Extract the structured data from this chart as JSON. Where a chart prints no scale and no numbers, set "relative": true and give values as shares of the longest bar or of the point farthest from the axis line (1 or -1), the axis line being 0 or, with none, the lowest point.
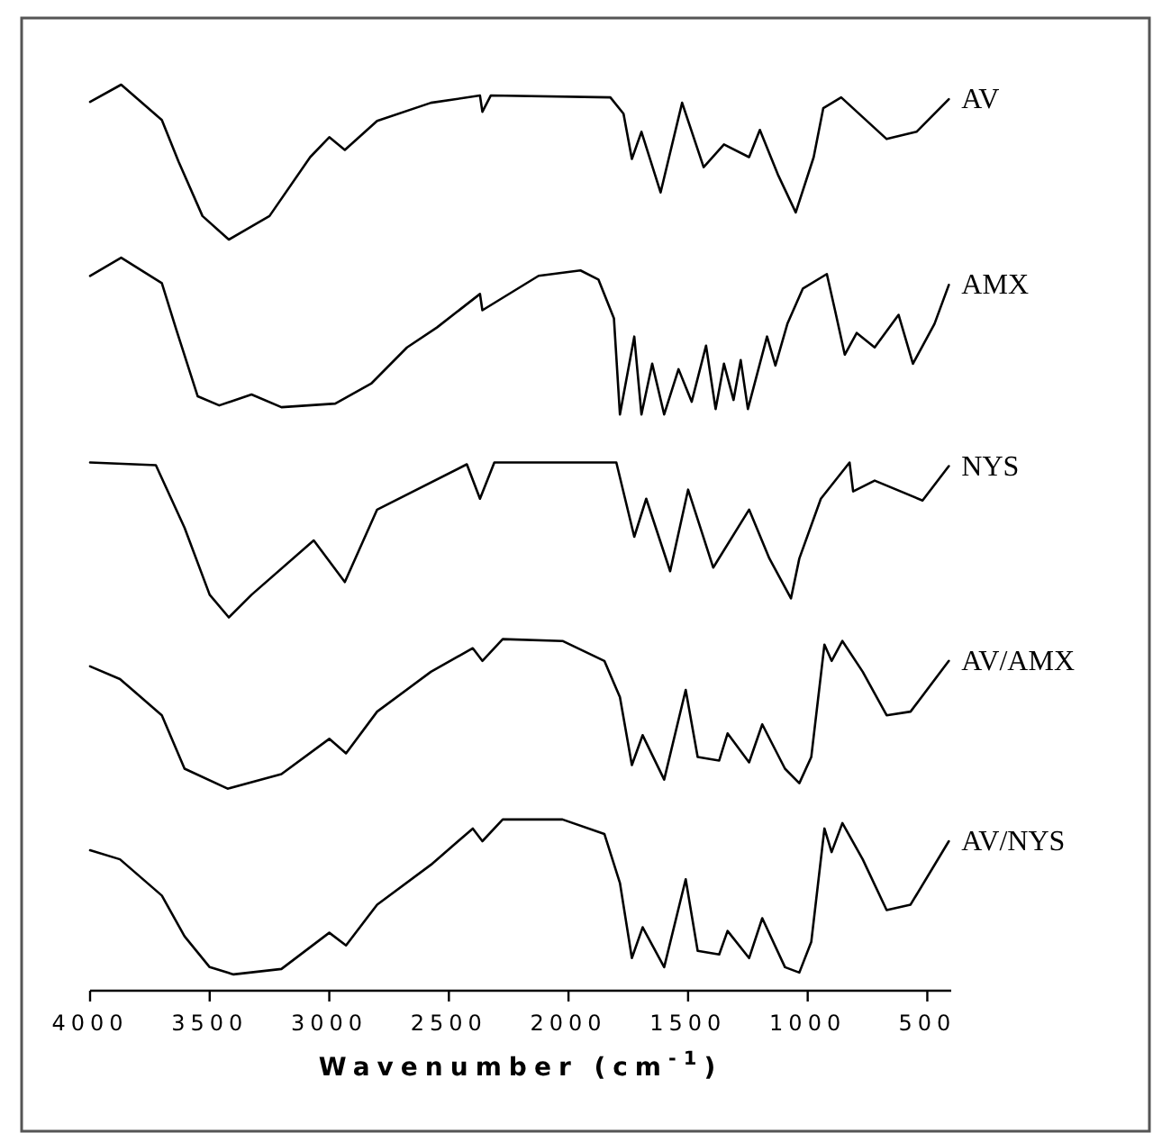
{
  "chart_data": {
    "type": "line",
    "relative": true,
    "xlabel": "Wavenumber (cm$^{-1}$)",
    "xlim": [
      4000,
      400
    ],
    "xticks": [
      4000,
      3500,
      3000,
      2500,
      2000,
      1500,
      1000,
      500
    ],
    "grid": false,
    "legend": false,
    "marker": "none",
    "line_style": "solid",
    "series": [
      {
        "name": "AV",
        "color": "#000000",
        "x": [
          4000,
          3870,
          3700,
          3630,
          3530,
          3420,
          3250,
          3080,
          3000,
          2935,
          2800,
          2575,
          2370,
          2360,
          2325,
          1825,
          1770,
          1735,
          1695,
          1615,
          1525,
          1435,
          1350,
          1245,
          1200,
          1125,
          1050,
          975,
          935,
          860,
          670,
          545,
          410
        ],
        "values": [
          0.981,
          1.0,
          0.961,
          0.915,
          0.855,
          0.829,
          0.855,
          0.92,
          0.942,
          0.928,
          0.96,
          0.98,
          0.988,
          0.97,
          0.988,
          0.986,
          0.968,
          0.918,
          0.948,
          0.881,
          0.98,
          0.909,
          0.934,
          0.92,
          0.95,
          0.901,
          0.859,
          0.92,
          0.974,
          0.986,
          0.94,
          0.948,
          0.984
        ]
      },
      {
        "name": "AMX",
        "color": "#000000",
        "x": [
          4000,
          3870,
          3700,
          3640,
          3550,
          3460,
          3325,
          3200,
          2975,
          2825,
          2675,
          2550,
          2370,
          2360,
          2125,
          1950,
          1875,
          1810,
          1785,
          1725,
          1695,
          1650,
          1600,
          1540,
          1485,
          1425,
          1385,
          1350,
          1310,
          1280,
          1250,
          1170,
          1135,
          1085,
          1020,
          920,
          885,
          845,
          795,
          720,
          620,
          560,
          470,
          410
        ],
        "values": [
          0.789,
          0.809,
          0.781,
          0.73,
          0.656,
          0.646,
          0.658,
          0.644,
          0.648,
          0.67,
          0.71,
          0.732,
          0.769,
          0.751,
          0.789,
          0.795,
          0.785,
          0.742,
          0.636,
          0.722,
          0.636,
          0.692,
          0.636,
          0.686,
          0.65,
          0.712,
          0.642,
          0.692,
          0.652,
          0.696,
          0.642,
          0.722,
          0.69,
          0.736,
          0.775,
          0.791,
          0.75,
          0.702,
          0.726,
          0.71,
          0.746,
          0.692,
          0.736,
          0.779
        ]
      },
      {
        "name": "NYS",
        "color": "#000000",
        "x": [
          4000,
          3725,
          3605,
          3500,
          3420,
          3325,
          3065,
          2935,
          2800,
          2425,
          2370,
          2310,
          1800,
          1725,
          1675,
          1575,
          1500,
          1395,
          1245,
          1160,
          1070,
          1035,
          945,
          825,
          810,
          720,
          520,
          410
        ],
        "values": [
          0.583,
          0.58,
          0.511,
          0.437,
          0.412,
          0.437,
          0.497,
          0.451,
          0.531,
          0.581,
          0.543,
          0.583,
          0.583,
          0.501,
          0.543,
          0.463,
          0.553,
          0.467,
          0.531,
          0.477,
          0.433,
          0.477,
          0.543,
          0.583,
          0.551,
          0.563,
          0.541,
          0.579
        ]
      },
      {
        "name": "AV/AMX",
        "color": "#000000",
        "x": [
          4000,
          3875,
          3700,
          3605,
          3425,
          3200,
          3000,
          2930,
          2800,
          2575,
          2400,
          2360,
          2275,
          2025,
          1850,
          1785,
          1735,
          1690,
          1600,
          1510,
          1460,
          1370,
          1335,
          1245,
          1190,
          1095,
          1035,
          985,
          930,
          900,
          855,
          770,
          670,
          570,
          410
        ],
        "values": [
          0.358,
          0.344,
          0.304,
          0.245,
          0.223,
          0.239,
          0.278,
          0.262,
          0.308,
          0.352,
          0.378,
          0.364,
          0.388,
          0.386,
          0.364,
          0.324,
          0.249,
          0.282,
          0.233,
          0.332,
          0.258,
          0.254,
          0.284,
          0.252,
          0.294,
          0.245,
          0.229,
          0.258,
          0.382,
          0.364,
          0.386,
          0.352,
          0.304,
          0.308,
          0.364
        ]
      },
      {
        "name": "AV/NYS",
        "color": "#000000",
        "x": [
          4000,
          3875,
          3700,
          3605,
          3500,
          3400,
          3200,
          3000,
          2930,
          2800,
          2575,
          2400,
          2360,
          2275,
          2025,
          1850,
          1785,
          1735,
          1690,
          1600,
          1510,
          1460,
          1370,
          1335,
          1245,
          1190,
          1095,
          1035,
          985,
          930,
          900,
          855,
          770,
          670,
          570,
          410
        ],
        "values": [
          0.155,
          0.145,
          0.105,
          0.06,
          0.026,
          0.018,
          0.024,
          0.064,
          0.05,
          0.095,
          0.139,
          0.179,
          0.165,
          0.189,
          0.189,
          0.173,
          0.119,
          0.036,
          0.07,
          0.026,
          0.123,
          0.044,
          0.04,
          0.066,
          0.036,
          0.08,
          0.026,
          0.02,
          0.054,
          0.179,
          0.153,
          0.185,
          0.145,
          0.089,
          0.095,
          0.165
        ]
      }
    ]
  }
}
